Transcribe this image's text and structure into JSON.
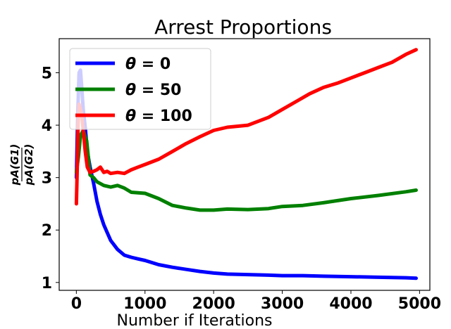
{
  "chart_data": {
    "type": "line",
    "title": "Arrest Proportions",
    "xlabel": "Number if Iterations",
    "ylabel_numerator": "pA(G1)",
    "ylabel_denominator": "pA(G2)",
    "xlim": [
      -250,
      5150
    ],
    "ylim": [
      0.85,
      5.65
    ],
    "xticks": [
      0,
      1000,
      2000,
      3000,
      4000,
      5000
    ],
    "xtick_labels": [
      "0",
      "1000",
      "2000",
      "3000",
      "4000",
      "5000"
    ],
    "yticks": [
      1,
      2,
      3,
      4,
      5
    ],
    "ytick_labels": [
      "1",
      "2",
      "3",
      "4",
      "5"
    ],
    "grid": false,
    "legend_placement": "top-left",
    "series": [
      {
        "name": "θ = 0",
        "legend_theta": "θ",
        "legend_value": "0",
        "color": "#0000ff",
        "x": [
          0,
          20,
          40,
          60,
          80,
          100,
          130,
          160,
          200,
          250,
          300,
          350,
          400,
          450,
          500,
          600,
          700,
          800,
          900,
          1000,
          1200,
          1400,
          1600,
          1800,
          2000,
          2200,
          2500,
          2800,
          3000,
          3300,
          3600,
          4000,
          4400,
          4800,
          4950
        ],
        "y": [
          3.0,
          4.2,
          5.0,
          5.05,
          4.7,
          4.3,
          3.95,
          3.5,
          3.2,
          2.9,
          2.55,
          2.3,
          2.1,
          1.95,
          1.8,
          1.63,
          1.52,
          1.48,
          1.45,
          1.42,
          1.34,
          1.29,
          1.25,
          1.21,
          1.18,
          1.16,
          1.15,
          1.14,
          1.13,
          1.13,
          1.12,
          1.11,
          1.1,
          1.09,
          1.08
        ]
      },
      {
        "name": "θ = 50",
        "legend_theta": "θ",
        "legend_value": "50",
        "color": "#008000",
        "x": [
          0,
          30,
          60,
          100,
          150,
          200,
          250,
          300,
          400,
          500,
          600,
          700,
          800,
          1000,
          1200,
          1400,
          1600,
          1800,
          2000,
          2200,
          2500,
          2800,
          3000,
          3300,
          3600,
          4000,
          4400,
          4800,
          4950
        ],
        "y": [
          3.1,
          3.4,
          3.8,
          3.9,
          3.7,
          3.05,
          3.0,
          2.92,
          2.85,
          2.82,
          2.85,
          2.8,
          2.72,
          2.7,
          2.6,
          2.47,
          2.42,
          2.38,
          2.38,
          2.4,
          2.39,
          2.41,
          2.45,
          2.47,
          2.52,
          2.6,
          2.66,
          2.73,
          2.76
        ]
      },
      {
        "name": "θ = 100",
        "legend_theta": "θ",
        "legend_value": "100",
        "color": "#ff0000",
        "x": [
          0,
          10,
          25,
          40,
          60,
          80,
          100,
          130,
          160,
          200,
          250,
          300,
          350,
          400,
          450,
          500,
          600,
          700,
          800,
          900,
          1000,
          1200,
          1400,
          1600,
          1800,
          2000,
          2200,
          2500,
          2800,
          3000,
          3200,
          3400,
          3600,
          3800,
          4000,
          4200,
          4400,
          4600,
          4800,
          4950
        ],
        "y": [
          2.5,
          3.0,
          4.0,
          4.4,
          4.3,
          4.2,
          3.9,
          3.5,
          3.2,
          3.1,
          3.12,
          3.15,
          3.2,
          3.1,
          3.12,
          3.08,
          3.1,
          3.08,
          3.15,
          3.2,
          3.25,
          3.35,
          3.5,
          3.65,
          3.78,
          3.9,
          3.96,
          4.0,
          4.15,
          4.3,
          4.45,
          4.6,
          4.72,
          4.8,
          4.9,
          5.0,
          5.1,
          5.2,
          5.35,
          5.44
        ]
      }
    ]
  }
}
